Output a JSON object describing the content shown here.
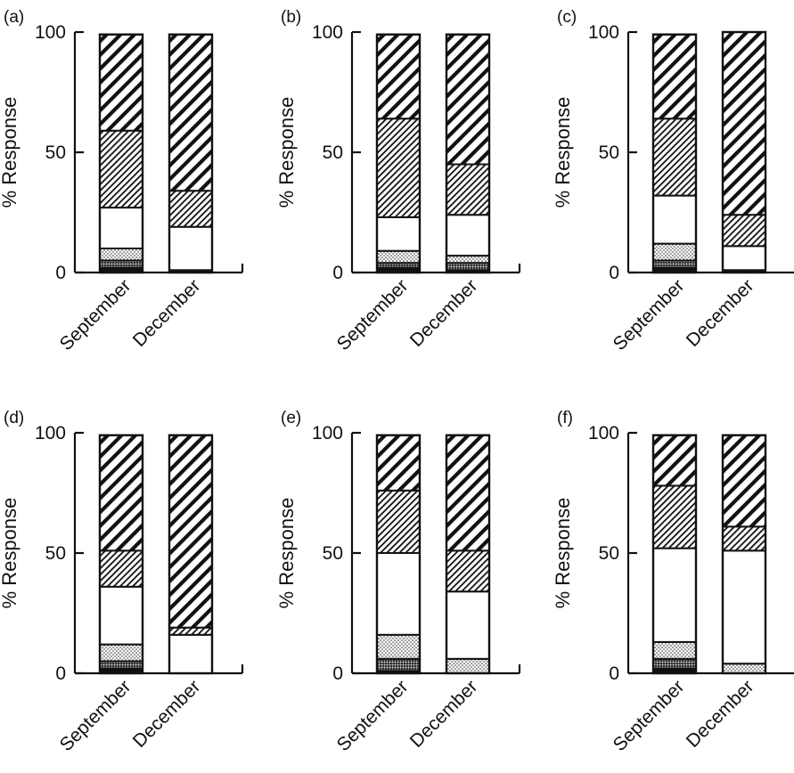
{
  "chart_data": [
    {
      "type": "bar",
      "stacked": true,
      "panel_label": "(a)",
      "ylabel": "% Response",
      "ylim": [
        0,
        100
      ],
      "yticks": [
        "0",
        "50",
        "100"
      ],
      "categories": [
        "September",
        "December"
      ],
      "series": [
        {
          "pattern": "solid-black",
          "values": [
            2,
            1
          ]
        },
        {
          "pattern": "dense-dots",
          "values": [
            3,
            0
          ]
        },
        {
          "pattern": "sparse-dots",
          "values": [
            5,
            0
          ]
        },
        {
          "pattern": "white",
          "values": [
            17,
            18
          ]
        },
        {
          "pattern": "fine-hatch",
          "values": [
            32,
            15
          ]
        },
        {
          "pattern": "coarse-hatch",
          "values": [
            40,
            65
          ]
        }
      ]
    },
    {
      "type": "bar",
      "stacked": true,
      "panel_label": "(b)",
      "ylabel": "% Response",
      "ylim": [
        0,
        100
      ],
      "yticks": [
        "0",
        "50",
        "100"
      ],
      "categories": [
        "September",
        "December"
      ],
      "series": [
        {
          "pattern": "solid-black",
          "values": [
            2,
            1
          ]
        },
        {
          "pattern": "dense-dots",
          "values": [
            2,
            3
          ]
        },
        {
          "pattern": "sparse-dots",
          "values": [
            5,
            3
          ]
        },
        {
          "pattern": "white",
          "values": [
            14,
            17
          ]
        },
        {
          "pattern": "fine-hatch",
          "values": [
            41,
            21
          ]
        },
        {
          "pattern": "coarse-hatch",
          "values": [
            35,
            54
          ]
        }
      ]
    },
    {
      "type": "bar",
      "stacked": true,
      "panel_label": "(c)",
      "ylabel": "% Response",
      "ylim": [
        0,
        100
      ],
      "yticks": [
        "0",
        "50",
        "100"
      ],
      "categories": [
        "September",
        "December"
      ],
      "series": [
        {
          "pattern": "solid-black",
          "values": [
            2,
            1
          ]
        },
        {
          "pattern": "dense-dots",
          "values": [
            3,
            0
          ]
        },
        {
          "pattern": "sparse-dots",
          "values": [
            7,
            0
          ]
        },
        {
          "pattern": "white",
          "values": [
            20,
            10
          ]
        },
        {
          "pattern": "fine-hatch",
          "values": [
            32,
            13
          ]
        },
        {
          "pattern": "coarse-hatch",
          "values": [
            35,
            76
          ]
        }
      ]
    },
    {
      "type": "bar",
      "stacked": true,
      "panel_label": "(d)",
      "ylabel": "% Response",
      "ylim": [
        0,
        100
      ],
      "yticks": [
        "0",
        "50",
        "100"
      ],
      "categories": [
        "September",
        "December"
      ],
      "series": [
        {
          "pattern": "solid-black",
          "values": [
            2,
            0
          ]
        },
        {
          "pattern": "dense-dots",
          "values": [
            3,
            0
          ]
        },
        {
          "pattern": "sparse-dots",
          "values": [
            7,
            0
          ]
        },
        {
          "pattern": "white",
          "values": [
            24,
            16
          ]
        },
        {
          "pattern": "fine-hatch",
          "values": [
            15,
            3
          ]
        },
        {
          "pattern": "coarse-hatch",
          "values": [
            48,
            80
          ]
        }
      ]
    },
    {
      "type": "bar",
      "stacked": true,
      "panel_label": "(e)",
      "ylabel": "% Response",
      "ylim": [
        0,
        100
      ],
      "yticks": [
        "0",
        "50",
        "100"
      ],
      "categories": [
        "September",
        "December"
      ],
      "series": [
        {
          "pattern": "solid-black",
          "values": [
            1,
            0
          ]
        },
        {
          "pattern": "dense-dots",
          "values": [
            5,
            0
          ]
        },
        {
          "pattern": "sparse-dots",
          "values": [
            10,
            6
          ]
        },
        {
          "pattern": "white",
          "values": [
            34,
            28
          ]
        },
        {
          "pattern": "fine-hatch",
          "values": [
            26,
            17
          ]
        },
        {
          "pattern": "coarse-hatch",
          "values": [
            23,
            48
          ]
        }
      ]
    },
    {
      "type": "bar",
      "stacked": true,
      "panel_label": "(f)",
      "ylabel": "% Response",
      "ylim": [
        0,
        100
      ],
      "yticks": [
        "0",
        "50",
        "100"
      ],
      "categories": [
        "September",
        "December"
      ],
      "series": [
        {
          "pattern": "solid-black",
          "values": [
            2,
            0
          ]
        },
        {
          "pattern": "dense-dots",
          "values": [
            4,
            0
          ]
        },
        {
          "pattern": "sparse-dots",
          "values": [
            7,
            4
          ]
        },
        {
          "pattern": "white",
          "values": [
            39,
            47
          ]
        },
        {
          "pattern": "fine-hatch",
          "values": [
            26,
            10
          ]
        },
        {
          "pattern": "coarse-hatch",
          "values": [
            21,
            38
          ]
        }
      ]
    }
  ]
}
